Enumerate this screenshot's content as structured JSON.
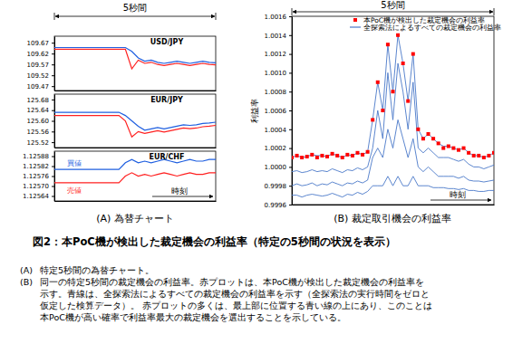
{
  "chart_data": [
    {
      "type": "line",
      "title": "USD/JPY",
      "annotations": [
        "5秒間"
      ],
      "x": [
        0,
        0.2,
        0.4,
        0.6,
        0.8,
        1,
        1.2,
        1.4,
        1.6,
        1.8,
        2,
        2.2,
        2.4,
        2.6,
        2.8,
        3,
        3.2,
        3.4,
        3.6,
        3.8,
        4,
        4.2,
        4.4,
        4.6,
        4.8,
        5
      ],
      "xlim": [
        0,
        5
      ],
      "xticks": [],
      "ylim": [
        109.45,
        109.7
      ],
      "yticks": [
        109.67,
        109.62,
        109.57,
        109.52,
        109.47
      ],
      "tick_labels": "y",
      "grid": false,
      "series": [
        {
          "color": "#1f5fe0",
          "values": [
            109.648,
            109.648,
            109.648,
            109.648,
            109.648,
            109.648,
            109.648,
            109.648,
            109.648,
            109.648,
            109.648,
            109.648,
            109.63,
            109.6,
            109.585,
            109.59,
            109.58,
            109.575,
            109.58,
            109.585,
            109.58,
            109.575,
            109.58,
            109.585,
            109.58,
            109.578
          ]
        },
        {
          "color": "#ff2020",
          "values": [
            109.64,
            109.64,
            109.64,
            109.64,
            109.64,
            109.64,
            109.64,
            109.64,
            109.64,
            109.64,
            109.64,
            109.64,
            109.55,
            109.59,
            109.575,
            109.58,
            109.57,
            109.565,
            109.57,
            109.575,
            109.57,
            109.565,
            109.57,
            109.575,
            109.57,
            109.568
          ]
        }
      ]
    },
    {
      "type": "line",
      "title": "EUR/JPY",
      "x": [
        0,
        0.2,
        0.4,
        0.6,
        0.8,
        1,
        1.2,
        1.4,
        1.6,
        1.8,
        2,
        2.2,
        2.4,
        2.6,
        2.8,
        3,
        3.2,
        3.4,
        3.6,
        3.8,
        4,
        4.2,
        4.4,
        4.6,
        4.8,
        5
      ],
      "xlim": [
        0,
        5
      ],
      "xticks": [],
      "ylim": [
        125.5,
        125.7
      ],
      "yticks": [
        125.68,
        125.64,
        {
          "value": 125.6,
          "label": "125.60"
        },
        125.56,
        125.52
      ],
      "tick_labels": "y",
      "grid": false,
      "series": [
        {
          "color": "#1f5fe0",
          "values": [
            125.632,
            125.632,
            125.632,
            125.632,
            125.632,
            125.632,
            125.632,
            125.632,
            125.632,
            125.632,
            125.632,
            125.62,
            125.6,
            125.58,
            125.565,
            125.57,
            125.575,
            125.57,
            125.575,
            125.58,
            125.585,
            125.583,
            125.585,
            125.59,
            125.592,
            125.595
          ]
        },
        {
          "color": "#ff2020",
          "values": [
            125.62,
            125.62,
            125.62,
            125.62,
            125.62,
            125.62,
            125.62,
            125.62,
            125.62,
            125.62,
            125.62,
            125.6,
            125.54,
            125.56,
            125.553,
            125.558,
            125.563,
            125.558,
            125.563,
            125.568,
            125.573,
            125.571,
            125.573,
            125.578,
            125.58,
            125.583
          ]
        }
      ]
    },
    {
      "type": "line",
      "title": "EUR/CHF",
      "x_label": "時刻",
      "legend": "left",
      "x": [
        0,
        0.2,
        0.4,
        0.6,
        0.8,
        1,
        1.2,
        1.4,
        1.6,
        1.8,
        2,
        2.2,
        2.4,
        2.6,
        2.8,
        3,
        3.2,
        3.4,
        3.6,
        3.8,
        4,
        4.2,
        4.4,
        4.6,
        4.8,
        5
      ],
      "xlim": [
        0,
        5
      ],
      "xticks": [],
      "ylim": [
        1.12561,
        1.12591
      ],
      "yticks": [
        1.12588,
        1.12582,
        1.12576,
        {
          "value": 1.1257,
          "label": "1.12570"
        },
        1.12564
      ],
      "tick_labels": "y",
      "grid": false,
      "series": [
        {
          "name": "買値",
          "color": "#1f5fe0",
          "values": [
            1.1258,
            1.1258,
            1.1258,
            1.1258,
            1.1258,
            1.1258,
            1.1258,
            1.1258,
            1.1258,
            1.1258,
            1.1258,
            1.12584,
            1.12586,
            1.12584,
            1.12585,
            1.12584,
            1.12585,
            1.12586,
            1.12585,
            1.12584,
            1.12585,
            1.12586,
            1.12585,
            1.12585,
            1.12586,
            1.12586
          ]
        },
        {
          "name": "売値",
          "color": "#ff2020",
          "values": [
            1.12572,
            1.12572,
            1.12572,
            1.12572,
            1.12572,
            1.12572,
            1.12572,
            1.12572,
            1.12572,
            1.12572,
            1.12572,
            1.12576,
            1.12578,
            1.12576,
            1.12577,
            1.12576,
            1.12577,
            1.12578,
            1.12577,
            1.12576,
            1.12577,
            1.12578,
            1.12577,
            1.12577,
            1.12578,
            1.12578
          ]
        }
      ]
    },
    {
      "type": "scatter",
      "annotations": [
        "5秒間"
      ],
      "x_label": "時刻",
      "y_label": "利益率",
      "legend": "top",
      "x": [
        0,
        0.125,
        0.25,
        0.375,
        0.5,
        0.625,
        0.75,
        0.875,
        1,
        1.125,
        1.25,
        1.375,
        1.5,
        1.625,
        1.75,
        1.875,
        2,
        2.125,
        2.25,
        2.375,
        2.5,
        2.625,
        2.75,
        2.875,
        3,
        3.125,
        3.25,
        3.375,
        3.5,
        3.625,
        3.75,
        3.875,
        4,
        4.125,
        4.25,
        4.375,
        4.5,
        4.625,
        4.75,
        4.875,
        5
      ],
      "xlim": [
        0,
        5
      ],
      "xticks": [],
      "ylim": [
        0.9996,
        1.0016
      ],
      "yticks": [
        1.0016,
        1.0014,
        1.0012,
        {
          "value": 1.001,
          "label": "1.0010"
        },
        1.0008,
        1.0006,
        1.0004,
        1.0002,
        {
          "value": 1,
          "label": "1.0000"
        },
        0.9998,
        0.9996
      ],
      "tick_labels": "y",
      "grid": false,
      "series": [
        {
          "name": "本PoC機が検出した裁定機会の利益率",
          "type": "scatter",
          "marker": "square",
          "color": "#ff0000",
          "values": [
            1.0001,
            1.00012,
            1.0001,
            1.00011,
            1.00013,
            1.0001,
            1.00012,
            1.00011,
            1.00014,
            1.00012,
            1.0001,
            1.00013,
            1.00012,
            1.00015,
            1.00013,
            1.00016,
            1.0005,
            1.0009,
            1.0006,
            1.0013,
            1.0008,
            1.0014,
            1.0011,
            1.0007,
            1.0012,
            1.0004,
            1.0003,
            1.00035,
            1.0003,
            1.00025,
            1.0002,
            1.00022,
            1.0002,
            1.00018,
            1.0002,
            1.00015,
            1.00012,
            1.00012,
            1.0001,
            1.00012,
            1.00015
          ]
        },
        {
          "name": "全探索法によるすべての裁定機会の利益率",
          "type": "line",
          "line_style": "solid",
          "color": "#4a78c8",
          "values": [
            [
              1.0001,
              0.99995,
              0.9998,
              0.9997
            ],
            [
              1.00012,
              0.99996,
              0.99982,
              0.9997
            ],
            [
              1.0001,
              0.99994,
              0.9998,
              0.99968
            ],
            [
              1.00011,
              0.99995,
              0.99981,
              0.9997
            ],
            [
              1.00013,
              0.99997,
              0.99983,
              0.99971
            ],
            [
              1.00012,
              0.99995,
              0.9998,
              0.9997
            ],
            [
              1.00012,
              0.99996,
              0.99982,
              0.99969
            ],
            [
              1.00011,
              0.99995,
              0.99981,
              0.9997
            ],
            [
              1.00014,
              0.99998,
              0.99984,
              0.99972
            ],
            [
              1.00012,
              0.99996,
              0.99982,
              0.9997
            ],
            [
              1.0001,
              0.99994,
              0.9998,
              0.99968
            ],
            [
              1.00013,
              0.99997,
              0.99983,
              0.99971
            ],
            [
              1.00012,
              0.99996,
              0.99982,
              0.9997
            ],
            [
              1.00015,
              0.99999,
              0.99985,
              0.99973
            ],
            [
              1.00013,
              0.99997,
              0.99983,
              0.99971
            ],
            [
              1.00016,
              1.0,
              0.99986,
              0.99974
            ],
            [
              1.0005,
              1.0002,
              1.0001,
              0.9998
            ],
            [
              1.0009,
              1.0006,
              1.0002,
              0.9998
            ],
            [
              1.0006,
              1.0003,
              1.0001,
              0.9998
            ],
            [
              1.0013,
              1.001,
              1.0004,
              0.9999
            ],
            [
              1.0008,
              1.0005,
              1.0002,
              0.9998
            ],
            [
              1.0014,
              1.0011,
              1.0005,
              0.9999
            ],
            [
              1.0011,
              1.0008,
              1.0003,
              0.9998
            ],
            [
              1.0007,
              1.0004,
              1.0001,
              0.9998
            ],
            [
              1.0012,
              1.0009,
              1.0003,
              0.9999
            ],
            [
              1.0004,
              1.0002,
              1.0,
              0.9998
            ],
            [
              1.0003,
              1.00015,
              0.99995,
              0.9998
            ],
            [
              1.00035,
              1.0002,
              1.0,
              0.9998
            ],
            [
              1.0003,
              1.00015,
              0.99995,
              0.99978
            ],
            [
              1.00025,
              1.0001,
              0.9999,
              0.99978
            ],
            [
              1.00022,
              1.0001,
              0.9999,
              0.99978
            ],
            [
              1.00022,
              1.0001,
              0.9999,
              0.99977
            ],
            [
              1.0002,
              1.00008,
              0.9999,
              0.99977
            ],
            [
              1.00018,
              1.00006,
              0.99988,
              0.99976
            ],
            [
              1.0002,
              1.00008,
              0.9999,
              0.99977
            ],
            [
              1.00015,
              1.00003,
              0.99986,
              0.99975
            ],
            [
              1.00012,
              1.0,
              0.99985,
              0.99975
            ],
            [
              1.00012,
              1.0,
              0.99985,
              0.99974
            ],
            [
              1.0001,
              0.99998,
              0.99984,
              0.99974
            ],
            [
              1.00012,
              1.0,
              0.99985,
              0.99975
            ],
            [
              1.00015,
              1.00002,
              0.99986,
              0.99975
            ]
          ]
        }
      ]
    }
  ],
  "figure": {
    "panel_labels": [
      "(A) 為替チャート",
      "(B) 裁定取引機会の利益率"
    ],
    "title": "図2：本PoC機が検出した裁定機会の利益率（特定の5秒間の状況を表示）",
    "notes": [
      {
        "label": "(A)",
        "lines": [
          "特定5秒間の為替チャート。"
        ]
      },
      {
        "label": "(B)",
        "lines": [
          "同一の特定5秒間の裁定機会の利益率。赤プロットは、本PoC機が検出した裁定機会の利益率を",
          "示す。青線は、全探索法によるすべての裁定機会の利益率を示す（全探索法の実行時間をゼロと",
          "仮定した検算データ）。 赤プロットの多くは、最上部に位置する青い線の上にあり、このことは",
          "本PoC機が高い確率で利益率最大の裁定機会を選出することを示している。"
        ]
      }
    ]
  }
}
